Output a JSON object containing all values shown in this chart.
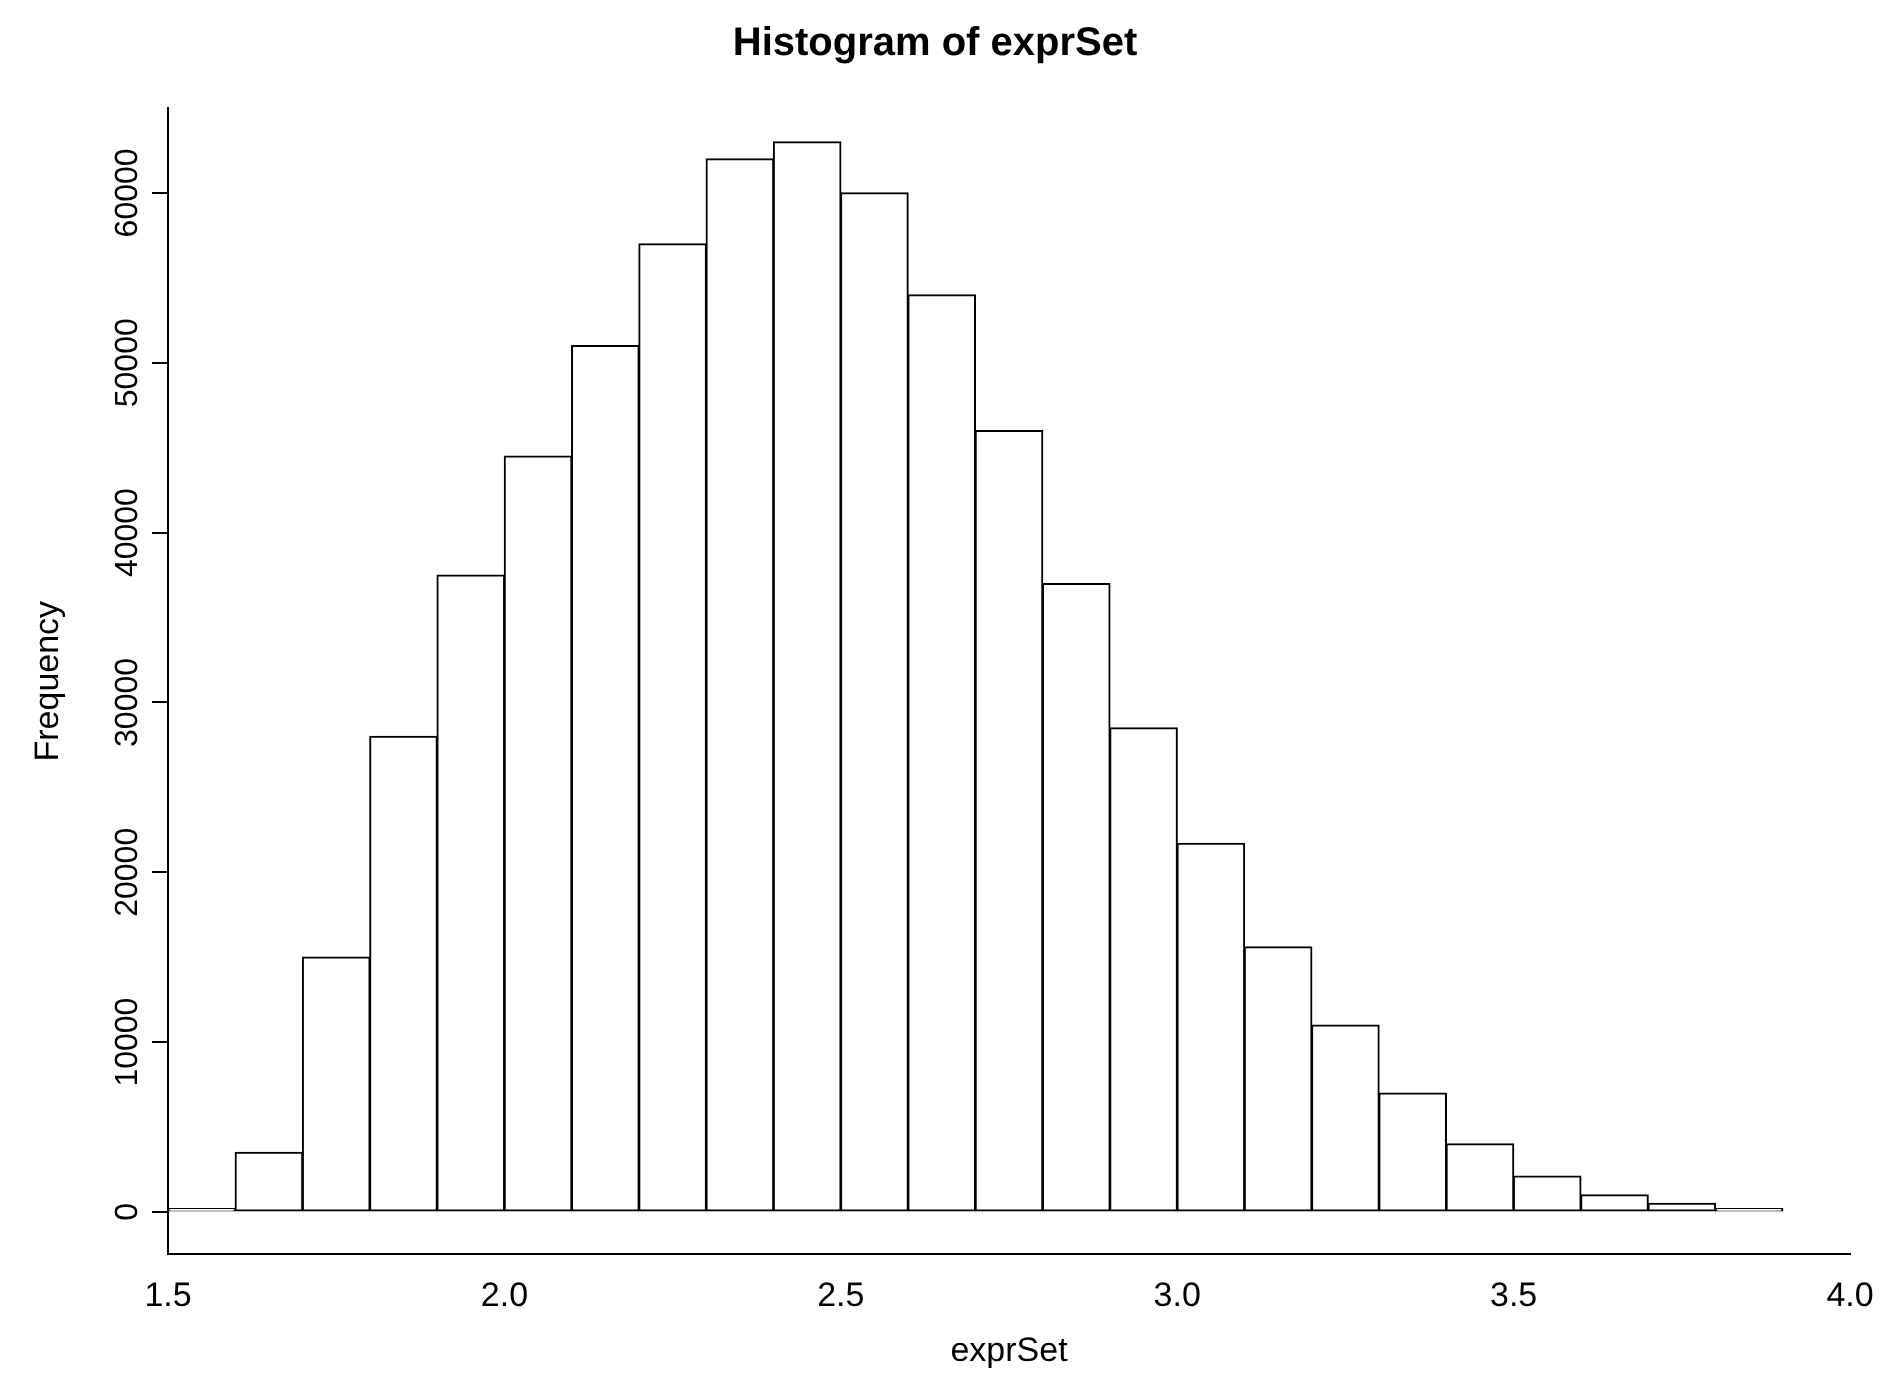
{
  "chart_data": {
    "type": "histogram",
    "title": "Histogram of exprSet",
    "xlabel": "exprSet",
    "ylabel": "Frequency",
    "bins": [
      1.5,
      1.6,
      1.7,
      1.8,
      1.9,
      2.0,
      2.1,
      2.2,
      2.3,
      2.4,
      2.5,
      2.6,
      2.7,
      2.8,
      2.9,
      3.0,
      3.1,
      3.2,
      3.3,
      3.4,
      3.5,
      3.6,
      3.7,
      3.8,
      3.9,
      4.0
    ],
    "values": [
      200,
      3500,
      15000,
      28000,
      37500,
      44500,
      51000,
      57000,
      62000,
      63000,
      60000,
      54000,
      46000,
      37000,
      28500,
      21700,
      15600,
      11000,
      7000,
      4000,
      2100,
      1000,
      500,
      200,
      null
    ],
    "color": "#ffffff",
    "xlim": [
      1.5,
      4.0
    ],
    "xticks": [
      1.5,
      {
        "value": 2,
        "label": "2.0"
      },
      2.5,
      {
        "value": 3,
        "label": "3.0"
      },
      3.5,
      {
        "value": 4,
        "label": "4.0"
      }
    ],
    "ylim": [
      -2500,
      65000
    ],
    "yticks": [
      0,
      10000,
      20000,
      30000,
      40000,
      50000,
      60000
    ],
    "grid": false,
    "legend": false
  }
}
